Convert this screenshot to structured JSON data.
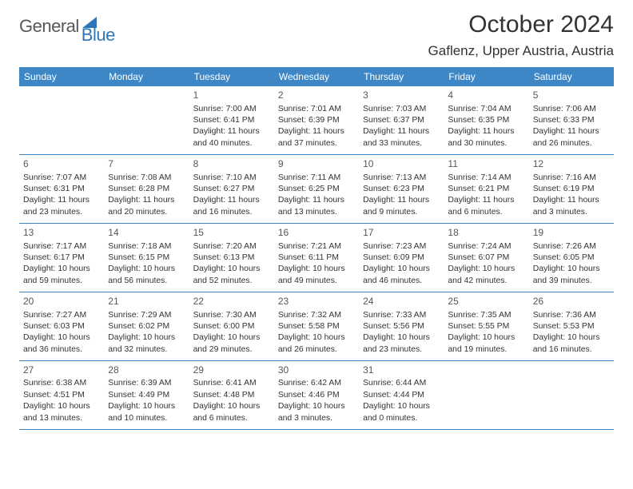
{
  "brand": {
    "part1": "General",
    "part2": "Blue"
  },
  "title": "October 2024",
  "location": "Gaflenz, Upper Austria, Austria",
  "colors": {
    "header_bg": "#3d87c7",
    "header_text": "#ffffff",
    "brand_gray": "#58585a",
    "brand_blue": "#2f76b8",
    "text": "#333333",
    "border": "#3d87c7",
    "background": "#ffffff"
  },
  "dayNames": [
    "Sunday",
    "Monday",
    "Tuesday",
    "Wednesday",
    "Thursday",
    "Friday",
    "Saturday"
  ],
  "weeks": [
    [
      null,
      null,
      {
        "n": "1",
        "sr": "Sunrise: 7:00 AM",
        "ss": "Sunset: 6:41 PM",
        "d1": "Daylight: 11 hours",
        "d2": "and 40 minutes."
      },
      {
        "n": "2",
        "sr": "Sunrise: 7:01 AM",
        "ss": "Sunset: 6:39 PM",
        "d1": "Daylight: 11 hours",
        "d2": "and 37 minutes."
      },
      {
        "n": "3",
        "sr": "Sunrise: 7:03 AM",
        "ss": "Sunset: 6:37 PM",
        "d1": "Daylight: 11 hours",
        "d2": "and 33 minutes."
      },
      {
        "n": "4",
        "sr": "Sunrise: 7:04 AM",
        "ss": "Sunset: 6:35 PM",
        "d1": "Daylight: 11 hours",
        "d2": "and 30 minutes."
      },
      {
        "n": "5",
        "sr": "Sunrise: 7:06 AM",
        "ss": "Sunset: 6:33 PM",
        "d1": "Daylight: 11 hours",
        "d2": "and 26 minutes."
      }
    ],
    [
      {
        "n": "6",
        "sr": "Sunrise: 7:07 AM",
        "ss": "Sunset: 6:31 PM",
        "d1": "Daylight: 11 hours",
        "d2": "and 23 minutes."
      },
      {
        "n": "7",
        "sr": "Sunrise: 7:08 AM",
        "ss": "Sunset: 6:28 PM",
        "d1": "Daylight: 11 hours",
        "d2": "and 20 minutes."
      },
      {
        "n": "8",
        "sr": "Sunrise: 7:10 AM",
        "ss": "Sunset: 6:27 PM",
        "d1": "Daylight: 11 hours",
        "d2": "and 16 minutes."
      },
      {
        "n": "9",
        "sr": "Sunrise: 7:11 AM",
        "ss": "Sunset: 6:25 PM",
        "d1": "Daylight: 11 hours",
        "d2": "and 13 minutes."
      },
      {
        "n": "10",
        "sr": "Sunrise: 7:13 AM",
        "ss": "Sunset: 6:23 PM",
        "d1": "Daylight: 11 hours",
        "d2": "and 9 minutes."
      },
      {
        "n": "11",
        "sr": "Sunrise: 7:14 AM",
        "ss": "Sunset: 6:21 PM",
        "d1": "Daylight: 11 hours",
        "d2": "and 6 minutes."
      },
      {
        "n": "12",
        "sr": "Sunrise: 7:16 AM",
        "ss": "Sunset: 6:19 PM",
        "d1": "Daylight: 11 hours",
        "d2": "and 3 minutes."
      }
    ],
    [
      {
        "n": "13",
        "sr": "Sunrise: 7:17 AM",
        "ss": "Sunset: 6:17 PM",
        "d1": "Daylight: 10 hours",
        "d2": "and 59 minutes."
      },
      {
        "n": "14",
        "sr": "Sunrise: 7:18 AM",
        "ss": "Sunset: 6:15 PM",
        "d1": "Daylight: 10 hours",
        "d2": "and 56 minutes."
      },
      {
        "n": "15",
        "sr": "Sunrise: 7:20 AM",
        "ss": "Sunset: 6:13 PM",
        "d1": "Daylight: 10 hours",
        "d2": "and 52 minutes."
      },
      {
        "n": "16",
        "sr": "Sunrise: 7:21 AM",
        "ss": "Sunset: 6:11 PM",
        "d1": "Daylight: 10 hours",
        "d2": "and 49 minutes."
      },
      {
        "n": "17",
        "sr": "Sunrise: 7:23 AM",
        "ss": "Sunset: 6:09 PM",
        "d1": "Daylight: 10 hours",
        "d2": "and 46 minutes."
      },
      {
        "n": "18",
        "sr": "Sunrise: 7:24 AM",
        "ss": "Sunset: 6:07 PM",
        "d1": "Daylight: 10 hours",
        "d2": "and 42 minutes."
      },
      {
        "n": "19",
        "sr": "Sunrise: 7:26 AM",
        "ss": "Sunset: 6:05 PM",
        "d1": "Daylight: 10 hours",
        "d2": "and 39 minutes."
      }
    ],
    [
      {
        "n": "20",
        "sr": "Sunrise: 7:27 AM",
        "ss": "Sunset: 6:03 PM",
        "d1": "Daylight: 10 hours",
        "d2": "and 36 minutes."
      },
      {
        "n": "21",
        "sr": "Sunrise: 7:29 AM",
        "ss": "Sunset: 6:02 PM",
        "d1": "Daylight: 10 hours",
        "d2": "and 32 minutes."
      },
      {
        "n": "22",
        "sr": "Sunrise: 7:30 AM",
        "ss": "Sunset: 6:00 PM",
        "d1": "Daylight: 10 hours",
        "d2": "and 29 minutes."
      },
      {
        "n": "23",
        "sr": "Sunrise: 7:32 AM",
        "ss": "Sunset: 5:58 PM",
        "d1": "Daylight: 10 hours",
        "d2": "and 26 minutes."
      },
      {
        "n": "24",
        "sr": "Sunrise: 7:33 AM",
        "ss": "Sunset: 5:56 PM",
        "d1": "Daylight: 10 hours",
        "d2": "and 23 minutes."
      },
      {
        "n": "25",
        "sr": "Sunrise: 7:35 AM",
        "ss": "Sunset: 5:55 PM",
        "d1": "Daylight: 10 hours",
        "d2": "and 19 minutes."
      },
      {
        "n": "26",
        "sr": "Sunrise: 7:36 AM",
        "ss": "Sunset: 5:53 PM",
        "d1": "Daylight: 10 hours",
        "d2": "and 16 minutes."
      }
    ],
    [
      {
        "n": "27",
        "sr": "Sunrise: 6:38 AM",
        "ss": "Sunset: 4:51 PM",
        "d1": "Daylight: 10 hours",
        "d2": "and 13 minutes."
      },
      {
        "n": "28",
        "sr": "Sunrise: 6:39 AM",
        "ss": "Sunset: 4:49 PM",
        "d1": "Daylight: 10 hours",
        "d2": "and 10 minutes."
      },
      {
        "n": "29",
        "sr": "Sunrise: 6:41 AM",
        "ss": "Sunset: 4:48 PM",
        "d1": "Daylight: 10 hours",
        "d2": "and 6 minutes."
      },
      {
        "n": "30",
        "sr": "Sunrise: 6:42 AM",
        "ss": "Sunset: 4:46 PM",
        "d1": "Daylight: 10 hours",
        "d2": "and 3 minutes."
      },
      {
        "n": "31",
        "sr": "Sunrise: 6:44 AM",
        "ss": "Sunset: 4:44 PM",
        "d1": "Daylight: 10 hours",
        "d2": "and 0 minutes."
      },
      null,
      null
    ]
  ]
}
